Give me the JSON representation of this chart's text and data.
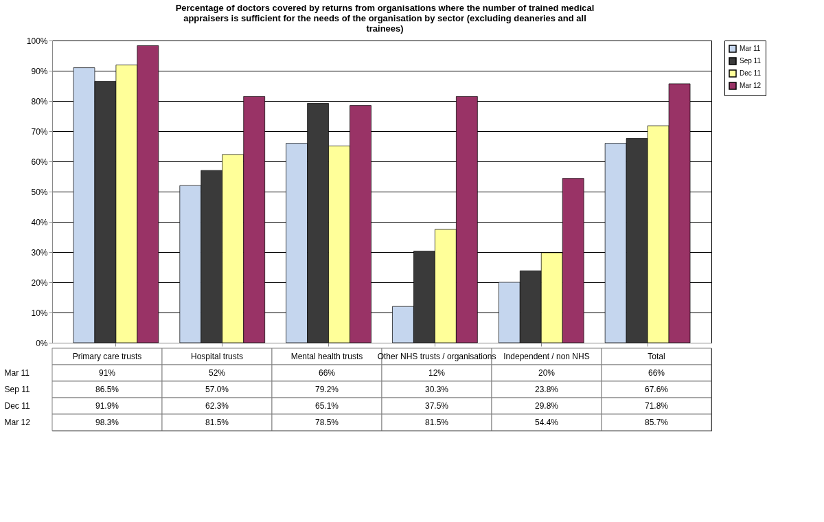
{
  "chart_data": {
    "type": "bar",
    "title": "Percentage of doctors covered by returns from organisations where the number of trained medical appraisers is sufficient for the needs of the organisation by sector (excluding deaneries and all trainees)",
    "categories": [
      "Primary care trusts",
      "Hospital trusts",
      "Mental health trusts",
      "Other NHS trusts / organisations",
      "Independent / non NHS",
      "Total"
    ],
    "series": [
      {
        "name": "Mar 11",
        "color": "#c5d6ee",
        "values": [
          91,
          52,
          66,
          12,
          20,
          66
        ],
        "value_labels": [
          "91%",
          "52%",
          "66%",
          "12%",
          "20%",
          "66%"
        ]
      },
      {
        "name": "Sep 11",
        "color": "#3a3a3a",
        "values": [
          86.5,
          57.0,
          79.2,
          30.3,
          23.8,
          67.6
        ],
        "value_labels": [
          "86.5%",
          "57.0%",
          "79.2%",
          "30.3%",
          "23.8%",
          "67.6%"
        ]
      },
      {
        "name": "Dec 11",
        "color": "#ffff99",
        "values": [
          91.9,
          62.3,
          65.1,
          37.5,
          29.8,
          71.8
        ],
        "value_labels": [
          "91.9%",
          "62.3%",
          "65.1%",
          "37.5%",
          "29.8%",
          "71.8%"
        ]
      },
      {
        "name": "Mar 12",
        "color": "#993366",
        "values": [
          98.3,
          81.5,
          78.5,
          81.5,
          54.4,
          85.7
        ],
        "value_labels": [
          "98.3%",
          "81.5%",
          "78.5%",
          "81.5%",
          "54.4%",
          "85.7%"
        ]
      }
    ],
    "ylim": [
      0,
      100
    ],
    "yticks": [
      {
        "value": 0,
        "label": "0%"
      },
      {
        "value": 10,
        "label": "10%"
      },
      {
        "value": 20,
        "label": "20%"
      },
      {
        "value": 30,
        "label": "30%"
      },
      {
        "value": 40,
        "label": "40%"
      },
      {
        "value": 50,
        "label": "50%"
      },
      {
        "value": 60,
        "label": "60%"
      },
      {
        "value": 70,
        "label": "70%"
      },
      {
        "value": 80,
        "label": "80%"
      },
      {
        "value": 90,
        "label": "90%"
      },
      {
        "value": 100,
        "label": "100%"
      }
    ],
    "grid": "y",
    "legend": "right"
  }
}
